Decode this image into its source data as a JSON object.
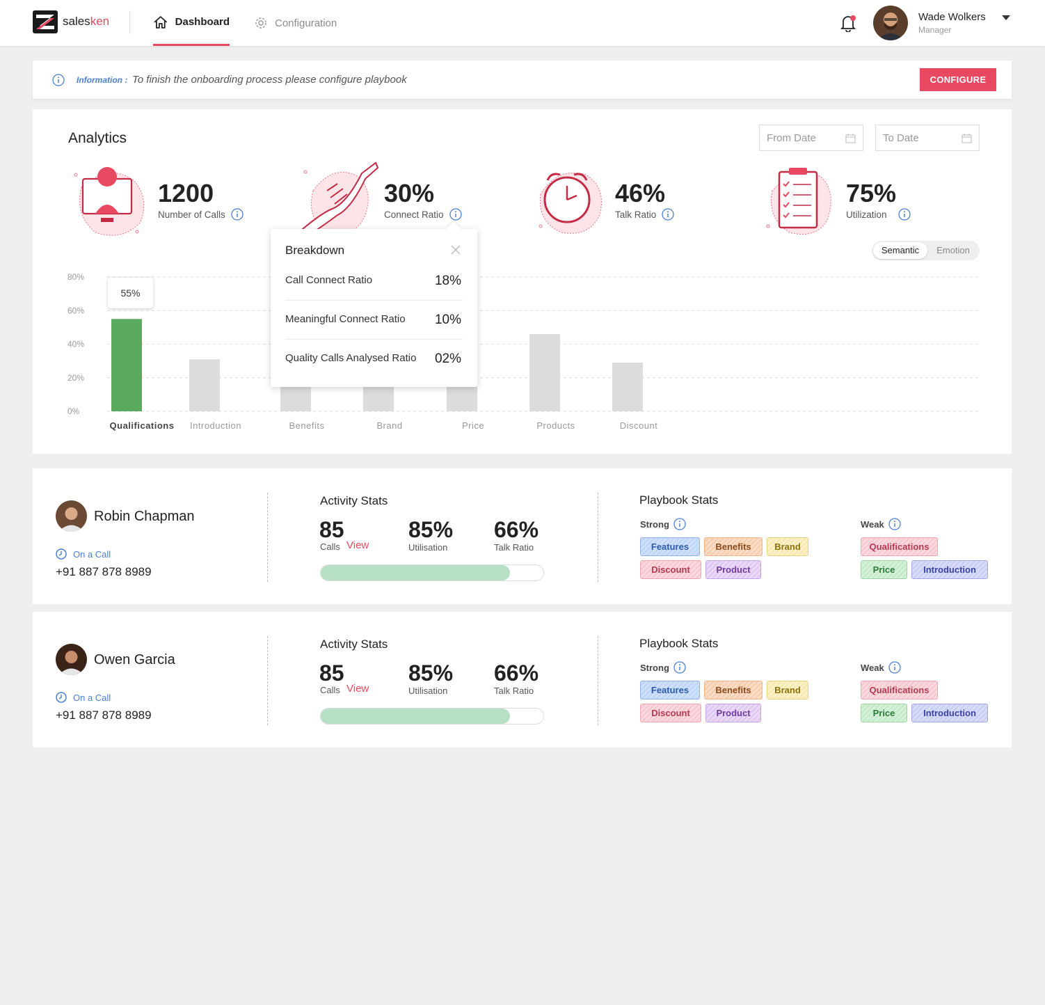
{
  "header": {
    "logo_text_1": "sales",
    "logo_text_2": "ken",
    "nav": {
      "dashboard": "Dashboard",
      "configuration": "Configuration"
    },
    "user": {
      "name": "Wade Wolkers",
      "role": "Manager"
    }
  },
  "info_bar": {
    "label": "Information :",
    "text": "To finish the onboarding process please configure playbook",
    "button": "CONFIGURE"
  },
  "analytics": {
    "title": "Analytics",
    "from_date_placeholder": "From Date",
    "to_date_placeholder": "To Date",
    "kpis": [
      {
        "value": "1200",
        "label": "Number of Calls",
        "icon": "support-agent-icon"
      },
      {
        "value": "30%",
        "label": "Connect Ratio",
        "icon": "handshake-icon"
      },
      {
        "value": "46%",
        "label": "Talk Ratio",
        "icon": "alarm-clock-icon"
      },
      {
        "value": "75%",
        "label": "Utilization",
        "icon": "clipboard-checklist-icon"
      }
    ],
    "toggle": {
      "options": [
        "Semantic",
        "Emotion"
      ],
      "selected": "Semantic"
    },
    "tooltip_value": "55%",
    "breakdown": {
      "title": "Breakdown",
      "rows": [
        {
          "label": "Call Connect Ratio",
          "value": "18%"
        },
        {
          "label": "Meaningful Connect Ratio",
          "value": "10%"
        },
        {
          "label": "Quality Calls Analysed Ratio",
          "value": "02%"
        }
      ]
    }
  },
  "chart_data": {
    "type": "bar",
    "categories": [
      "Qualifications",
      "Introduction",
      "Benefits",
      "Brand",
      "Price",
      "Products",
      "Discount"
    ],
    "values": [
      55,
      31,
      16,
      16,
      16,
      46,
      29
    ],
    "ylim": [
      0,
      80
    ],
    "yticks": [
      "0%",
      "20%",
      "40%",
      "60%",
      "80%"
    ],
    "highlighted": "Qualifications",
    "colors": {
      "highlight": "#5aaa5f",
      "default": "#dcdcdc"
    },
    "grid": true
  },
  "people": [
    {
      "name": "Robin Chapman",
      "status": "On a Call",
      "phone": "+91 887 878 8989",
      "activity": {
        "title": "Activity Stats",
        "calls": "85",
        "calls_label": "Calls",
        "view": "View",
        "utilisation": "85%",
        "utilisation_label": "Utilisation",
        "talk_ratio": "66%",
        "talk_ratio_label": "Talk Ratio",
        "progress": 85
      },
      "playbook": {
        "title": "Playbook Stats",
        "strong_label": "Strong",
        "weak_label": "Weak",
        "strong": [
          "Features",
          "Benefits",
          "Brand",
          "Discount",
          "Product"
        ],
        "weak": [
          "Qualifications",
          "Price",
          "Introduction"
        ]
      }
    },
    {
      "name": "Owen Garcia",
      "status": "On a Call",
      "phone": "+91 887 878 8989",
      "activity": {
        "title": "Activity Stats",
        "calls": "85",
        "calls_label": "Calls",
        "view": "View",
        "utilisation": "85%",
        "utilisation_label": "Utilisation",
        "talk_ratio": "66%",
        "talk_ratio_label": "Talk Ratio",
        "progress": 85
      },
      "playbook": {
        "title": "Playbook Stats",
        "strong_label": "Strong",
        "weak_label": "Weak",
        "strong": [
          "Features",
          "Benefits",
          "Brand",
          "Discount",
          "Product"
        ],
        "weak": [
          "Qualifications",
          "Price",
          "Introduction"
        ]
      }
    }
  ]
}
